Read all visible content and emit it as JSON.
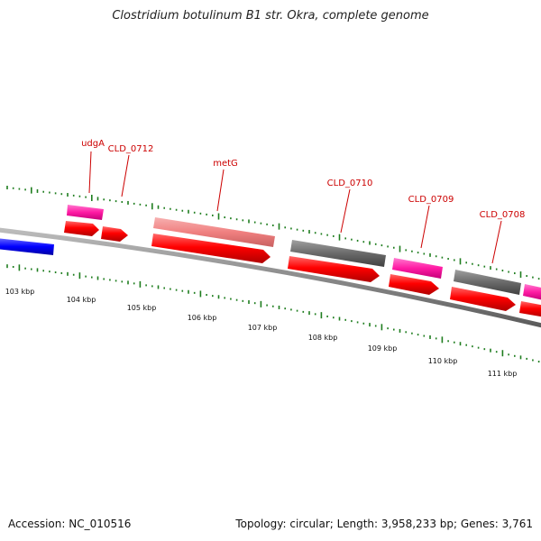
{
  "title": "Clostridium botulinum B1 str. Okra, complete genome",
  "footer": {
    "accession": "Accession: NC_010516",
    "summary": "Topology: circular; Length: 3,958,233 bp; Genes: 3,761"
  },
  "colors": {
    "backbone": "#8a8a8a",
    "ticks": "#1e7d1e",
    "gene_label": "#cc0000",
    "cds": "#ff0000",
    "gene_magenta": "#ff1aa3",
    "gene_pink": "#f08080",
    "gene_gray": "#6a6a6a",
    "gene_blue": "#0000ff"
  },
  "scale_labels": [
    "103 kbp",
    "104 kbp",
    "105 kbp",
    "106 kbp",
    "107 kbp",
    "108 kbp",
    "109 kbp",
    "110 kbp",
    "111 kbp"
  ],
  "gene_labels": [
    "udgA",
    "CLD_0712",
    "metG",
    "CLD_0710",
    "CLD_0709",
    "CLD_0708"
  ]
}
